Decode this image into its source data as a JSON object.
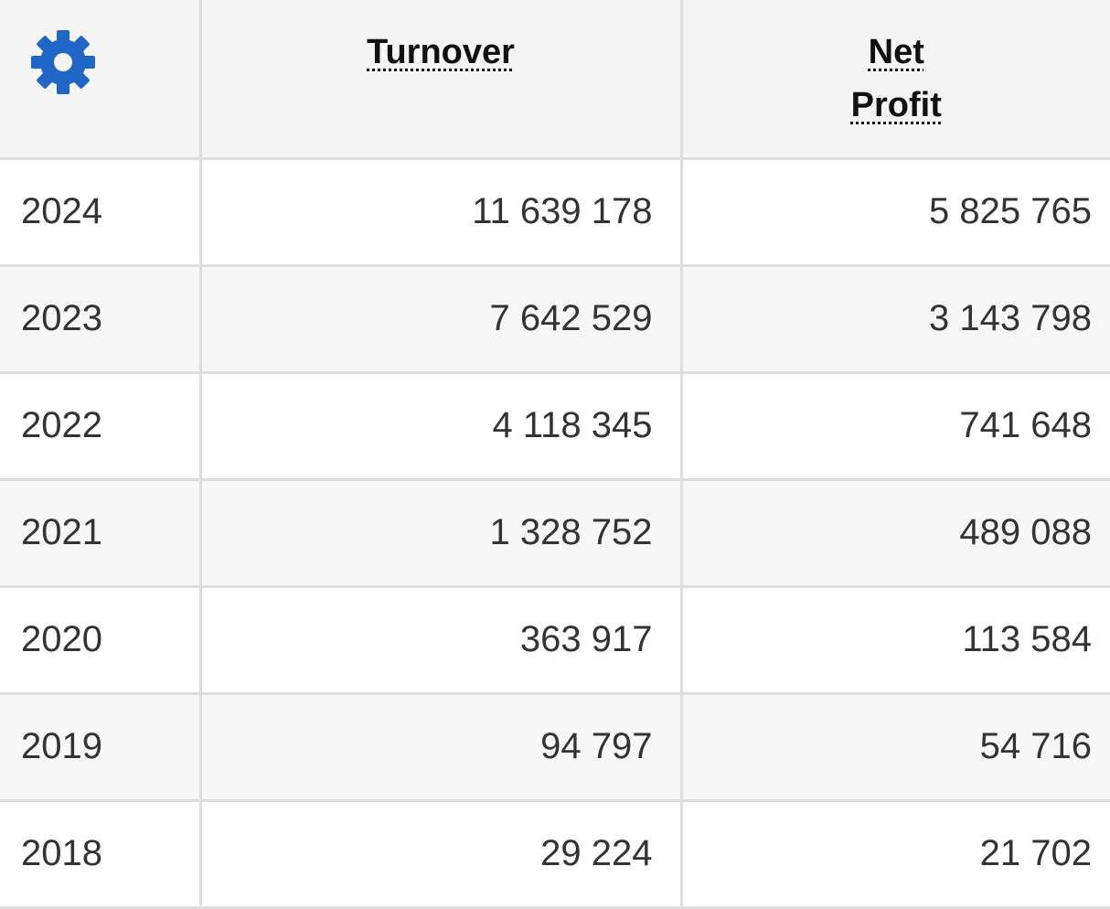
{
  "table": {
    "settings_icon": "gear-icon",
    "accent_color": "#1f66c7",
    "columns": {
      "turnover": "Turnover",
      "net_line1": "Net",
      "net_line2": "Profit"
    },
    "rows": [
      {
        "year": "2024",
        "turnover": "11 639 178",
        "net_profit": "5 825 765"
      },
      {
        "year": "2023",
        "turnover": "7 642 529",
        "net_profit": "3 143 798"
      },
      {
        "year": "2022",
        "turnover": "4 118 345",
        "net_profit": "741 648"
      },
      {
        "year": "2021",
        "turnover": "1 328 752",
        "net_profit": "489 088"
      },
      {
        "year": "2020",
        "turnover": "363 917",
        "net_profit": "113 584"
      },
      {
        "year": "2019",
        "turnover": "94 797",
        "net_profit": "54 716"
      },
      {
        "year": "2018",
        "turnover": "29 224",
        "net_profit": "21 702"
      }
    ]
  }
}
